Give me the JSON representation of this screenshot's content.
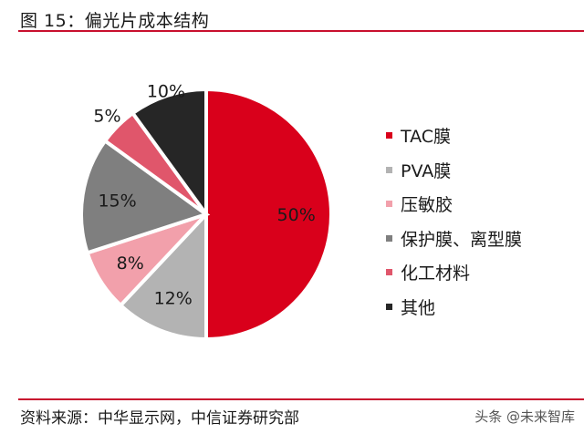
{
  "header": {
    "title": "图 15：偏光片成本结构"
  },
  "footer": {
    "source": "资料来源：中华显示网，中信证券研究部",
    "watermark": "头条 @未来智库"
  },
  "chart_data": {
    "type": "pie",
    "title": "偏光片成本结构",
    "categories": [
      "TAC膜",
      "PVA膜",
      "压敏胶",
      "保护膜、离型膜",
      "化工材料",
      "其他"
    ],
    "values": [
      50,
      12,
      8,
      15,
      5,
      10
    ],
    "labels": [
      "50%",
      "12%",
      "8%",
      "15%",
      "5%",
      "10%"
    ],
    "colors": [
      "#d9001b",
      "#b3b3b3",
      "#f2a0ab",
      "#7f7f7f",
      "#e0566b",
      "#262626"
    ],
    "legend_position": "right",
    "start_angle": "12 o'clock, clockwise"
  },
  "legend": {
    "items": [
      {
        "label": "TAC膜",
        "color": "#d9001b"
      },
      {
        "label": "PVA膜",
        "color": "#b3b3b3"
      },
      {
        "label": "压敏胶",
        "color": "#f2a0ab"
      },
      {
        "label": "保护膜、离型膜",
        "color": "#7f7f7f"
      },
      {
        "label": "化工材料",
        "color": "#e0566b"
      },
      {
        "label": "其他",
        "color": "#262626"
      }
    ]
  }
}
